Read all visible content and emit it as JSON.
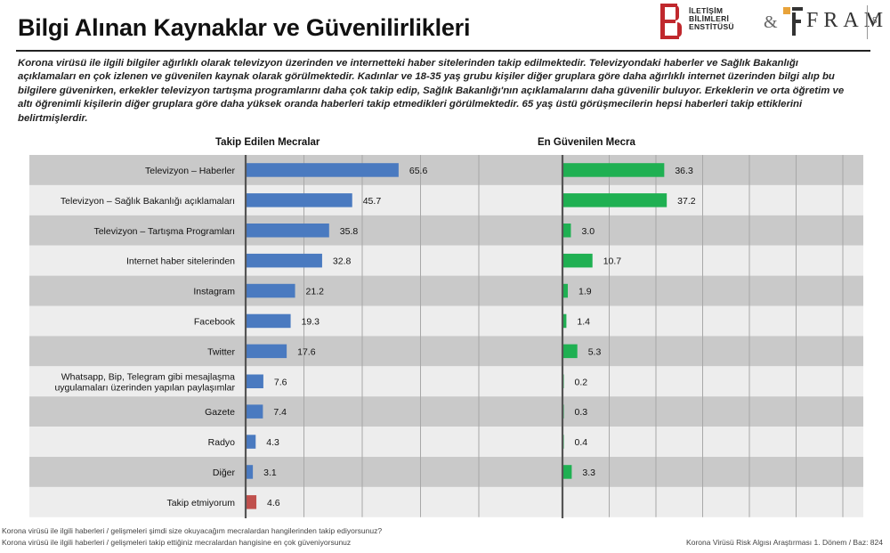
{
  "page": {
    "title": "Bilgi Alınan Kaynaklar ve Güvenilirlikleri",
    "page_number": "8",
    "intro": "Korona virüsü ile ilgili bilgiler ağırlıklı olarak televizyon üzerinden ve internetteki haber sitelerinden takip edilmektedir. Televizyondaki haberler ve  Sağlık Bakanlığı açıklamaları en çok izlenen ve güvenilen kaynak olarak görülmektedir. Kadınlar ve 18-35 yaş grubu kişiler diğer gruplara göre daha ağırlıklı internet üzerinden bilgi alıp bu bilgilere güvenirken, erkekler televizyon tartışma programlarını daha çok takip edip, Sağlık Bakanlığı'nın açıklamalarını daha güvenilir buluyor. Erkeklerin ve orta öğretim ve altı öğrenimli  kişilerin diğer gruplara göre daha yüksek oranda haberleri takip etmedikleri görülmektedir. 65 yaş üstü görüşmecilerin hepsi haberleri takip ettiklerini belirtmişlerdir.",
    "footnote_1": "Korona virüsü ile ilgili haberleri / gelişmeleri şimdi size okuyacağım mecralardan hangilerinden takip ediyorsunuz?",
    "footnote_2": "Korona virüsü ile ilgili haberleri / gelişmeleri takip ettiğiniz mecralardan hangisine en çok güveniyorsunuz",
    "source_note": "Korona Virüsü Risk Algısı Araştırması 1. Dönem / Baz: 824"
  },
  "logos": {
    "institute_line1": "İLETİŞİM",
    "institute_line2": "BİLİMLERİ",
    "institute_line3": "ENSTİTÜSÜ",
    "amp": "&",
    "fram": "FRAM",
    "colors": {
      "red": "#c0282d",
      "gold": "#e8a33a",
      "dark": "#333333"
    }
  },
  "chart_data": {
    "type": "bar",
    "orientation": "horizontal",
    "categories": [
      "Televizyon – Haberler",
      "Televizyon – Sağlık Bakanlığı açıklamaları",
      "Televizyon – Tartışma Programları",
      "Internet haber sitelerinden",
      "Instagram",
      "Facebook",
      "Twitter",
      "Whatsapp, Bip, Telegram gibi mesajlaşma uygulamaları üzerinden yapılan paylaşımlar",
      "Gazete",
      "Radyo",
      "Diğer",
      "Takip etmiyorum"
    ],
    "category_lines": [
      [
        "Televizyon – Haberler"
      ],
      [
        "Televizyon – Sağlık Bakanlığı açıklamaları"
      ],
      [
        "Televizyon – Tartışma Programları"
      ],
      [
        "Internet haber sitelerinden"
      ],
      [
        "Instagram"
      ],
      [
        "Facebook"
      ],
      [
        "Twitter"
      ],
      [
        "Whatsapp, Bip, Telegram gibi mesajlaşma",
        "uygulamaları üzerinden yapılan paylaşımlar"
      ],
      [
        "Gazete"
      ],
      [
        "Radyo"
      ],
      [
        "Diğer"
      ],
      [
        "Takip etmiyorum"
      ]
    ],
    "series": [
      {
        "name": "Takip Edilen Mecralar",
        "values": [
          65.6,
          45.7,
          35.8,
          32.8,
          21.2,
          19.3,
          17.6,
          7.6,
          7.4,
          4.3,
          3.1,
          4.6
        ],
        "labels": [
          "65.6",
          "45.7",
          "35.8",
          "32.8",
          "21.2",
          "19.3",
          "17.6",
          "7.6",
          "7.4",
          "4.3",
          "3.1",
          "4.6"
        ],
        "color": "#4a7ac0",
        "highlight_last_color": "#c0504d"
      },
      {
        "name": "En Güvenilen Mecra",
        "values": [
          36.3,
          37.2,
          3.0,
          10.7,
          1.9,
          1.4,
          5.3,
          0.2,
          0.3,
          0.4,
          3.3,
          null
        ],
        "labels": [
          "36.3",
          "37.2",
          "3.0",
          "10.7",
          "1.9",
          "1.4",
          "5.3",
          "0.2",
          "0.3",
          "0.4",
          "3.3",
          ""
        ],
        "color": "#1fb052"
      }
    ],
    "xlim": [
      0,
      100
    ],
    "grid": true,
    "row_band_colors": [
      "#c9c9c9",
      "#ededed"
    ]
  }
}
